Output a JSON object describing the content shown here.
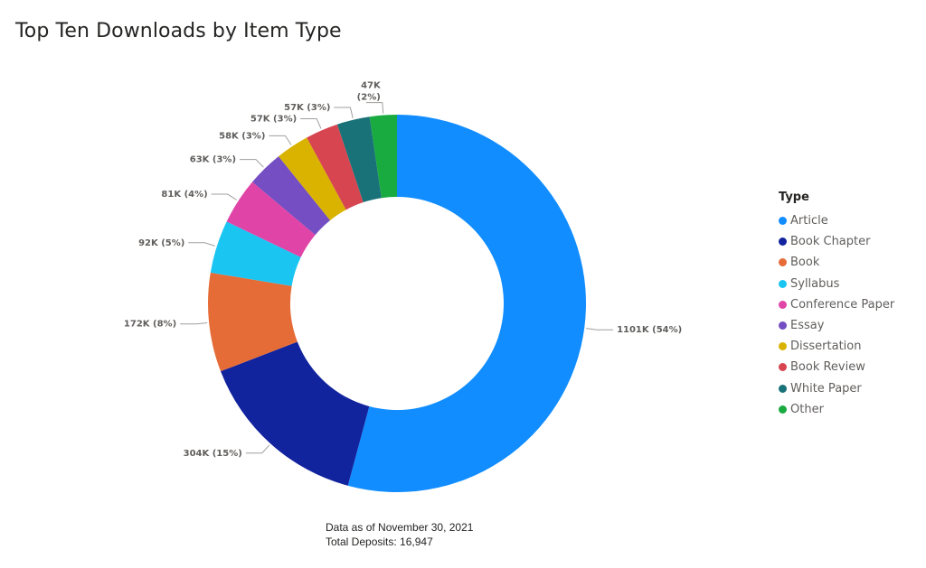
{
  "page": {
    "title": "Top Ten Downloads by Item Type",
    "footer_line1": "Data as of November 30, 2021",
    "footer_line2": "Total Deposits: 16,947"
  },
  "legend": {
    "title": "Type",
    "items": [
      {
        "label": "Article",
        "color": "#118DFF"
      },
      {
        "label": "Book Chapter",
        "color": "#12239E"
      },
      {
        "label": "Book",
        "color": "#E66C37"
      },
      {
        "label": "Syllabus",
        "color": "#1AC5F2"
      },
      {
        "label": "Conference Paper",
        "color": "#E044A7"
      },
      {
        "label": "Essay",
        "color": "#744EC2"
      },
      {
        "label": "Dissertation",
        "color": "#D9B300"
      },
      {
        "label": "Book Review",
        "color": "#D64550"
      },
      {
        "label": "White Paper",
        "color": "#197278"
      },
      {
        "label": "Other",
        "color": "#1AAB40"
      }
    ]
  },
  "chart_data": {
    "type": "pie",
    "variant": "donut",
    "title": "Top Ten Downloads by Item Type",
    "legend_title": "Type",
    "legend_position": "right",
    "categories": [
      "Article",
      "Book Chapter",
      "Book",
      "Syllabus",
      "Conference Paper",
      "Essay",
      "Dissertation",
      "Book Review",
      "White Paper",
      "Other"
    ],
    "values": [
      1101000,
      304000,
      172000,
      92000,
      81000,
      63000,
      58000,
      57000,
      57000,
      47000
    ],
    "data_labels": [
      "1101K (54%)",
      "304K (15%)",
      "172K (8%)",
      "92K (5%)",
      "81K (4%)",
      "63K (3%)",
      "58K (3%)",
      "57K (3%)",
      "57K (3%)",
      "47K (2%)"
    ],
    "colors": [
      "#118DFF",
      "#12239E",
      "#E66C37",
      "#1AC5F2",
      "#E044A7",
      "#744EC2",
      "#D9B300",
      "#D64550",
      "#197278",
      "#1AAB40"
    ]
  }
}
